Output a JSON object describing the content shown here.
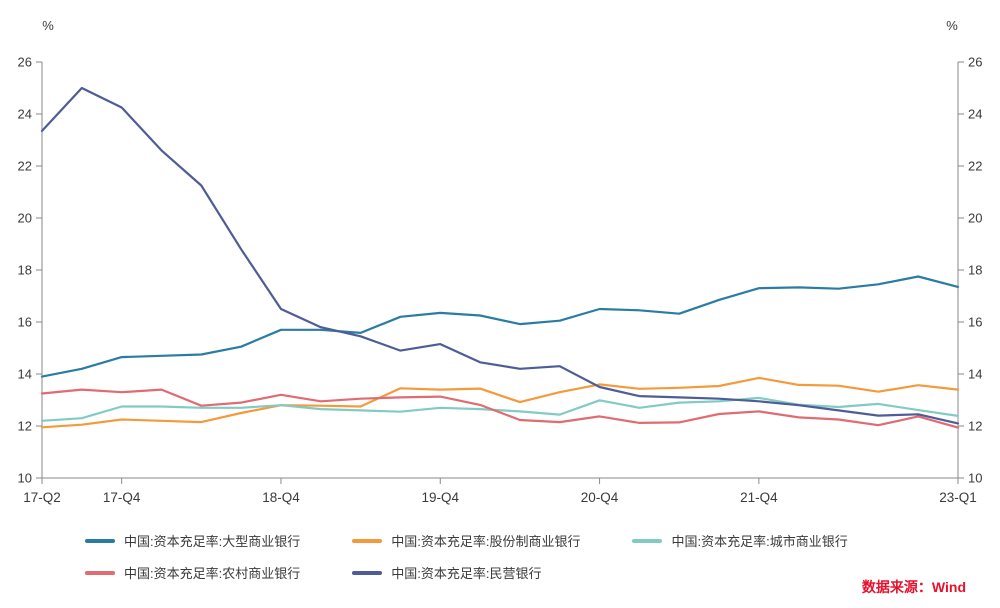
{
  "chart_data": {
    "type": "line",
    "unit_label_left": "%",
    "unit_label_right": "%",
    "x": [
      "17-Q2",
      "17-Q3",
      "17-Q4",
      "18-Q1",
      "18-Q2",
      "18-Q3",
      "18-Q4",
      "19-Q1",
      "19-Q2",
      "19-Q3",
      "19-Q4",
      "20-Q1",
      "20-Q2",
      "20-Q3",
      "20-Q4",
      "21-Q1",
      "21-Q2",
      "21-Q3",
      "21-Q4",
      "22-Q1",
      "22-Q2",
      "22-Q3",
      "22-Q4",
      "23-Q1"
    ],
    "x_tick_labels": [
      "17-Q2",
      "17-Q4",
      "18-Q4",
      "19-Q4",
      "20-Q4",
      "21-Q4",
      "23-Q1"
    ],
    "x_tick_indices": [
      0,
      2,
      6,
      10,
      14,
      18,
      23
    ],
    "ylim": [
      10,
      26
    ],
    "yticks": [
      10,
      12,
      14,
      16,
      18,
      20,
      22,
      24,
      26
    ],
    "grid": false,
    "legend_position": "bottom",
    "series": [
      {
        "name": "中国:资本充足率:大型商业银行",
        "color": "#2b7ca3",
        "values": [
          13.9,
          14.2,
          14.65,
          14.7,
          14.75,
          15.05,
          15.7,
          15.7,
          15.58,
          16.2,
          16.35,
          16.25,
          15.92,
          16.05,
          16.5,
          16.45,
          16.32,
          16.85,
          17.3,
          17.33,
          17.28,
          17.45,
          17.75,
          17.35
        ]
      },
      {
        "name": "中国:资本充足率:股份制商业银行",
        "color": "#f59a3b",
        "values": [
          11.95,
          12.05,
          12.25,
          12.2,
          12.15,
          12.5,
          12.8,
          12.78,
          12.75,
          13.45,
          13.4,
          13.44,
          12.92,
          13.3,
          13.6,
          13.43,
          13.47,
          13.54,
          13.85,
          13.58,
          13.55,
          13.32,
          13.57,
          13.4
        ]
      },
      {
        "name": "中国:资本充足率:城市商业银行",
        "color": "#82cbc3",
        "values": [
          12.2,
          12.3,
          12.75,
          12.75,
          12.7,
          12.7,
          12.8,
          12.65,
          12.6,
          12.55,
          12.7,
          12.65,
          12.56,
          12.44,
          12.99,
          12.7,
          12.9,
          12.95,
          13.08,
          12.82,
          12.73,
          12.85,
          12.61,
          12.39
        ]
      },
      {
        "name": "中国:资本充足率:农村商业银行",
        "color": "#e06b72",
        "values": [
          13.25,
          13.4,
          13.3,
          13.4,
          12.78,
          12.9,
          13.2,
          12.95,
          13.05,
          13.1,
          13.13,
          12.81,
          12.23,
          12.15,
          12.37,
          12.12,
          12.14,
          12.46,
          12.56,
          12.33,
          12.25,
          12.03,
          12.37,
          11.94
        ]
      },
      {
        "name": "中国:资本充足率:民营银行",
        "color": "#4e5c97",
        "values": [
          23.35,
          25.0,
          24.25,
          22.6,
          21.25,
          18.8,
          16.5,
          15.8,
          15.45,
          14.9,
          15.15,
          14.45,
          14.2,
          14.3,
          13.5,
          13.15,
          13.1,
          13.05,
          12.95,
          12.8,
          12.6,
          12.4,
          12.45,
          12.1
        ]
      }
    ]
  },
  "legend": {
    "rows": [
      [
        0,
        1,
        2
      ],
      [
        3,
        4
      ]
    ]
  },
  "source": {
    "text": "数据来源：Wind",
    "color": "#e8112d"
  }
}
